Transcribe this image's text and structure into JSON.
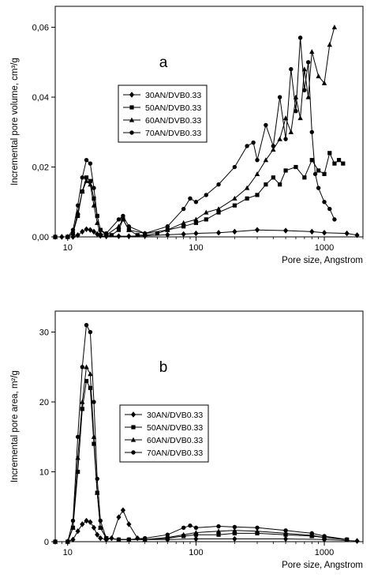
{
  "figure": {
    "description_visible": false
  },
  "chart_data": [
    {
      "type": "line",
      "panel_label": "a",
      "xlabel": "Pore size, Angstrom",
      "ylabel": "Incremental pore volume, cm³/g",
      "x_scale": "log",
      "xlim": [
        8,
        2000
      ],
      "ylim": [
        0,
        0.066
      ],
      "x_ticks": [
        10,
        100,
        1000
      ],
      "x_tick_labels": [
        "10",
        "100",
        "1000"
      ],
      "y_ticks": [
        0,
        0.02,
        0.04,
        0.06
      ],
      "y_tick_labels": [
        "0,00",
        "0,02",
        "0,04",
        "0,06"
      ],
      "grid": false,
      "legend_position": "center-left",
      "series": [
        {
          "name": "30AN/DVB0.33",
          "marker": "diamond",
          "x": [
            8,
            9,
            10,
            11,
            12,
            13,
            14,
            15,
            16,
            17,
            18,
            20,
            25,
            30,
            40,
            60,
            80,
            100,
            150,
            200,
            300,
            500,
            800,
            1000,
            1500,
            1800
          ],
          "y": [
            0,
            0,
            0,
            0,
            0.0005,
            0.0015,
            0.0022,
            0.002,
            0.0015,
            0.0008,
            0.0003,
            0.0002,
            0.0002,
            0.0002,
            0.0003,
            0.0006,
            0.0008,
            0.001,
            0.0012,
            0.0015,
            0.002,
            0.0018,
            0.0015,
            0.0012,
            0.001,
            0.0005
          ]
        },
        {
          "name": "50AN/DVB0.33",
          "marker": "square",
          "x": [
            8,
            10,
            11,
            12,
            13,
            14,
            15,
            16,
            17,
            18,
            20,
            22,
            25,
            27,
            30,
            35,
            40,
            50,
            60,
            80,
            100,
            120,
            150,
            200,
            250,
            300,
            350,
            400,
            450,
            500,
            600,
            700,
            800,
            900,
            1000,
            1100,
            1200,
            1300,
            1400
          ],
          "y": [
            0,
            0,
            0.001,
            0.006,
            0.013,
            0.017,
            0.016,
            0.011,
            0.006,
            0.002,
            0.0005,
            0.0005,
            0.002,
            0.005,
            0.002,
            0.0005,
            0.0005,
            0.001,
            0.002,
            0.003,
            0.004,
            0.005,
            0.007,
            0.009,
            0.011,
            0.012,
            0.015,
            0.017,
            0.015,
            0.019,
            0.02,
            0.017,
            0.022,
            0.019,
            0.018,
            0.024,
            0.021,
            0.022,
            0.021
          ]
        },
        {
          "name": "60AN/DVB0.33",
          "marker": "triangle",
          "x": [
            8,
            10,
            11,
            12,
            13,
            14,
            15,
            16,
            17,
            18,
            20,
            25,
            27,
            30,
            40,
            60,
            80,
            100,
            120,
            150,
            200,
            250,
            300,
            350,
            400,
            450,
            500,
            550,
            600,
            650,
            700,
            750,
            800,
            900,
            1000,
            1100,
            1200
          ],
          "y": [
            0,
            0,
            0.001,
            0.007,
            0.013,
            0.016,
            0.015,
            0.009,
            0.004,
            0.001,
            0.0005,
            0.003,
            0.005,
            0.002,
            0.001,
            0.002,
            0.004,
            0.005,
            0.007,
            0.008,
            0.011,
            0.014,
            0.018,
            0.022,
            0.025,
            0.028,
            0.034,
            0.03,
            0.04,
            0.034,
            0.048,
            0.04,
            0.053,
            0.046,
            0.044,
            0.055,
            0.06
          ]
        },
        {
          "name": "70AN/DVB0.33",
          "marker": "circle",
          "x": [
            8,
            10,
            11,
            12,
            13,
            14,
            15,
            16,
            17,
            18,
            20,
            25,
            27,
            30,
            40,
            60,
            80,
            90,
            100,
            120,
            150,
            200,
            250,
            280,
            300,
            350,
            400,
            450,
            500,
            550,
            600,
            650,
            700,
            750,
            800,
            850,
            900,
            1000,
            1100,
            1200
          ],
          "y": [
            0,
            0,
            0.002,
            0.009,
            0.017,
            0.022,
            0.021,
            0.014,
            0.006,
            0.002,
            0.001,
            0.005,
            0.006,
            0.003,
            0.001,
            0.003,
            0.008,
            0.011,
            0.01,
            0.012,
            0.015,
            0.02,
            0.026,
            0.027,
            0.022,
            0.032,
            0.026,
            0.04,
            0.028,
            0.048,
            0.036,
            0.057,
            0.042,
            0.05,
            0.03,
            0.018,
            0.014,
            0.01,
            0.008,
            0.005
          ]
        }
      ]
    },
    {
      "type": "line",
      "panel_label": "b",
      "xlabel": "Pore size, Angstrom",
      "ylabel": "Incremental pore area, m²/g",
      "x_scale": "log",
      "xlim": [
        8,
        2000
      ],
      "ylim": [
        0,
        33
      ],
      "x_ticks": [
        10,
        100,
        1000
      ],
      "x_tick_labels": [
        "10",
        "100",
        "1000"
      ],
      "y_ticks": [
        0,
        10,
        20,
        30
      ],
      "y_tick_labels": [
        "0",
        "10",
        "20",
        "30"
      ],
      "grid": false,
      "legend_position": "center-left",
      "series": [
        {
          "name": "30AN/DVB0.33",
          "marker": "diamond",
          "x": [
            8,
            10,
            11,
            12,
            13,
            14,
            15,
            16,
            17,
            18,
            20,
            22,
            25,
            27,
            30,
            35,
            40,
            60,
            100,
            200,
            500,
            1000,
            1800
          ],
          "y": [
            0,
            0,
            0.3,
            1.5,
            2.5,
            3.0,
            2.8,
            2.0,
            1.0,
            0.5,
            0.3,
            0.5,
            3.5,
            4.5,
            2.5,
            0.5,
            0.3,
            0.3,
            0.4,
            0.4,
            0.4,
            0.3,
            0.1
          ]
        },
        {
          "name": "50AN/DVB0.33",
          "marker": "square",
          "x": [
            8,
            10,
            11,
            12,
            13,
            14,
            15,
            16,
            17,
            18,
            20,
            25,
            30,
            40,
            60,
            80,
            100,
            150,
            200,
            300,
            500,
            800,
            1000,
            1500
          ],
          "y": [
            0,
            0,
            2,
            10,
            19,
            23,
            22,
            14,
            7,
            2,
            0.5,
            0.3,
            0.3,
            0.3,
            0.5,
            0.8,
            1.0,
            1.0,
            1.2,
            1.2,
            1.0,
            0.8,
            0.6,
            0.3
          ]
        },
        {
          "name": "60AN/DVB0.33",
          "marker": "triangle",
          "x": [
            8,
            10,
            11,
            12,
            13,
            14,
            15,
            16,
            17,
            18,
            20,
            25,
            30,
            40,
            60,
            80,
            100,
            150,
            200,
            300,
            500,
            800,
            1000,
            1500
          ],
          "y": [
            0,
            0,
            2,
            12,
            20,
            25,
            24,
            15,
            7,
            2,
            0.5,
            0.3,
            0.3,
            0.3,
            0.6,
            1.0,
            1.3,
            1.5,
            1.6,
            1.5,
            1.2,
            0.9,
            0.6,
            0.3
          ]
        },
        {
          "name": "70AN/DVB0.33",
          "marker": "circle",
          "x": [
            8,
            10,
            11,
            12,
            13,
            14,
            15,
            16,
            17,
            18,
            20,
            25,
            30,
            40,
            60,
            80,
            90,
            100,
            150,
            200,
            300,
            500,
            800,
            1000,
            1500
          ],
          "y": [
            0,
            0,
            3,
            15,
            25,
            31,
            30,
            20,
            9,
            3,
            0.5,
            0.3,
            0.3,
            0.5,
            1.0,
            2.0,
            2.3,
            2.0,
            2.2,
            2.1,
            2.0,
            1.6,
            1.2,
            0.8,
            0.3
          ]
        }
      ]
    }
  ]
}
